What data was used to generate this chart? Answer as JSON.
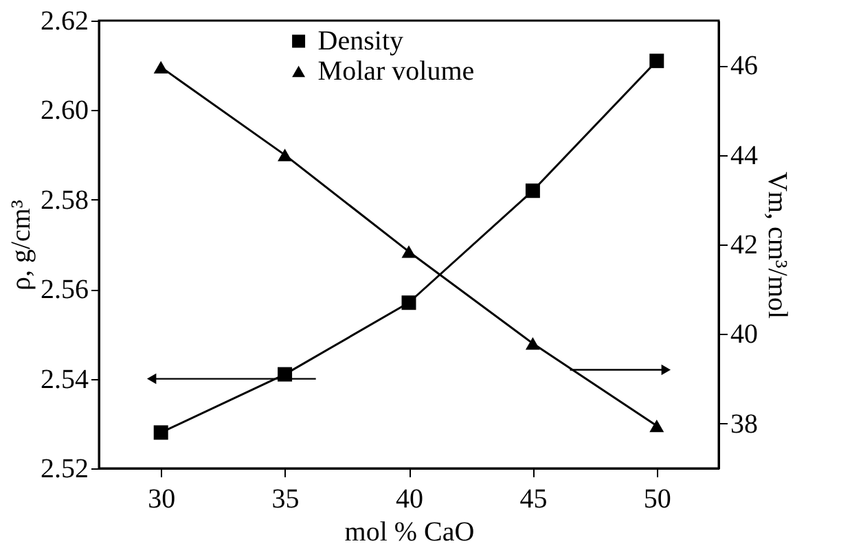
{
  "chart_data": {
    "type": "line",
    "x": [
      30,
      35,
      40,
      45,
      50
    ],
    "xlabel": "mol % CaO",
    "ylabel": "ρ, g/cm³",
    "y2label": "Vm, cm³/mol",
    "xlim": [
      27.5,
      52.5
    ],
    "xticks": [
      30,
      35,
      40,
      45,
      50
    ],
    "ylim": [
      2.52,
      2.62
    ],
    "yticks": [
      2.52,
      2.54,
      2.56,
      2.58,
      {
        "value": 2.6,
        "label": "2.60"
      },
      2.62
    ],
    "y2lim": [
      37,
      47
    ],
    "y2ticks": [
      38,
      40,
      42,
      44,
      46
    ],
    "series": [
      {
        "name": "Density",
        "color": "#000000",
        "marker": "square",
        "values": [
          2.528,
          2.541,
          2.557,
          2.582,
          2.611
        ]
      },
      {
        "name": "Molar volume",
        "color": "#000000",
        "marker": "triangle",
        "axis": "y2",
        "values": [
          45.96,
          44.0,
          41.84,
          39.79,
          37.95
        ]
      }
    ],
    "legend": "top",
    "grid": false,
    "line_style": "solid"
  }
}
